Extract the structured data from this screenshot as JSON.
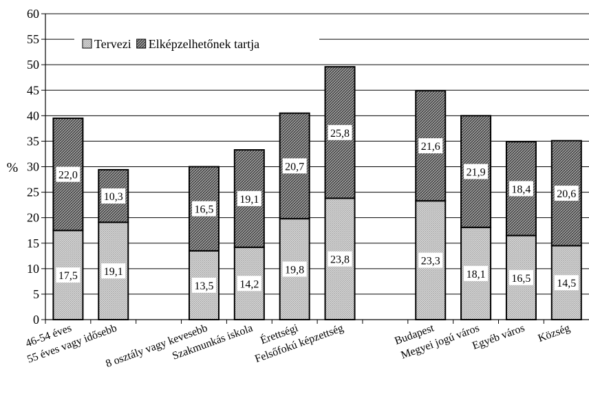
{
  "chart_data": {
    "type": "bar",
    "stacked": true,
    "ylabel": "%",
    "ylim": [
      0,
      60
    ],
    "ytick_step": 5,
    "grid": true,
    "legend_placement": "top-left",
    "categories": [
      "46-54 éves",
      "55 éves vagy idősebb",
      "",
      "8 osztály vagy kevesebb",
      "Szakmunkás iskola",
      "Érettségi",
      "Felsőfokú képzettség",
      "",
      "Budapest",
      "Megyei jogú város",
      "Egyéb város",
      "Község"
    ],
    "series": [
      {
        "name": "Tervezi",
        "pattern": "light-dots",
        "values": [
          17.5,
          19.1,
          null,
          13.5,
          14.2,
          19.8,
          23.8,
          null,
          23.3,
          18.1,
          16.5,
          14.5
        ],
        "labels": [
          "17,5",
          "19,1",
          "",
          "13,5",
          "14,2",
          "19,8",
          "23,8",
          "",
          "23,3",
          "18,1",
          "16,5",
          "14,5"
        ]
      },
      {
        "name": "Elképzelhetőnek tartja",
        "pattern": "dark-hatch",
        "values": [
          22.0,
          10.3,
          null,
          16.5,
          19.1,
          20.7,
          25.8,
          null,
          21.6,
          21.9,
          18.4,
          20.6
        ],
        "labels": [
          "22,0",
          "10,3",
          "",
          "16,5",
          "19,1",
          "20,7",
          "25,8",
          "",
          "21,6",
          "21,9",
          "18,4",
          "20,6"
        ]
      }
    ]
  }
}
